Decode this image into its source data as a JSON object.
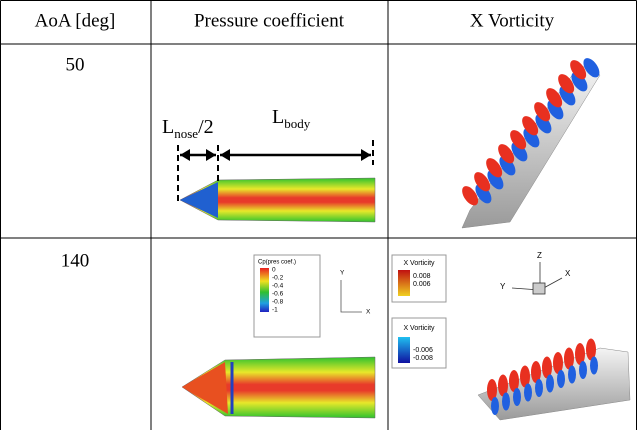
{
  "table": {
    "header": [
      "AoA [deg]",
      "Pressure coefficient",
      "X Vorticity"
    ],
    "rows": [
      [
        "50"
      ],
      [
        "140"
      ]
    ]
  },
  "figures": {
    "nose_label": {
      "main": "L",
      "sub": "nose",
      "suffix": "/2"
    },
    "body_label": {
      "main": "L",
      "sub": "body"
    },
    "cp_legend": {
      "title": "Cp(pres coef.)",
      "levels": [
        "0",
        "-0.2",
        "-0.4",
        "-0.6",
        "-0.8",
        "-1"
      ]
    },
    "cp_axes": [
      "Y",
      "X"
    ],
    "vort_legend_pos": {
      "title": "X Vorticity",
      "levels": [
        "0.008",
        "0.006"
      ]
    },
    "vort_legend_neg": {
      "title": "X Vorticity",
      "levels": [
        "-0.006",
        "-0.008"
      ]
    },
    "triad_axes": [
      "Z",
      "Y",
      "X"
    ]
  }
}
